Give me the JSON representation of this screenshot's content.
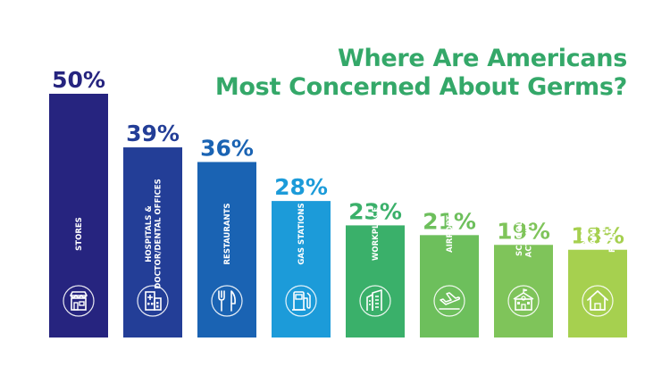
{
  "chart_data": {
    "type": "bar",
    "title_line1": "Where Are Americans",
    "title_line2": "Most Concerned About Germs?",
    "xlabel": "",
    "ylabel": "",
    "ylim": [
      0,
      50
    ],
    "grid": false,
    "categories": [
      "STORES",
      "HOSPITALS & DOCTOR/DENTAL OFFICES",
      "RESTAURANTS",
      "GAS STATIONS",
      "WORKPLACE",
      "AIRPORT",
      "SCHOOL & ACTIVITIES",
      "NEAR FAMILY AND FRIENDS"
    ],
    "values": [
      50,
      39,
      36,
      28,
      23,
      21,
      19,
      18
    ],
    "value_labels": [
      "50%",
      "39%",
      "36%",
      "28%",
      "23%",
      "21%",
      "19%",
      "18%"
    ],
    "label_lines": [
      [
        "STORES"
      ],
      [
        "HOSPITALS &",
        "DOCTOR/DENTAL OFFICES"
      ],
      [
        "RESTAURANTS"
      ],
      [
        "GAS STATIONS"
      ],
      [
        "WORKPLACE"
      ],
      [
        "AIRPORT"
      ],
      [
        "SCHOOL &",
        "ACTIVITIES"
      ],
      [
        "NEAR",
        "FAMILY",
        "AND",
        "FRIENDS"
      ]
    ],
    "icons": [
      "storefront-icon",
      "hospital-icon",
      "fork-knife-icon",
      "gas-pump-icon",
      "office-building-icon",
      "airplane-icon",
      "school-icon",
      "house-icon"
    ],
    "colors": {
      "bars": [
        "#26247f",
        "#233e97",
        "#1a63b3",
        "#1c9bd9",
        "#3ab06a",
        "#6dbf5c",
        "#7fc45a",
        "#a6d04f"
      ],
      "labels": [
        "#26247f",
        "#233e97",
        "#1a63b3",
        "#1c9bd9",
        "#3ab06a",
        "#6dbf5c",
        "#7fc45a",
        "#a6d04f"
      ],
      "title": "#34a869"
    }
  }
}
